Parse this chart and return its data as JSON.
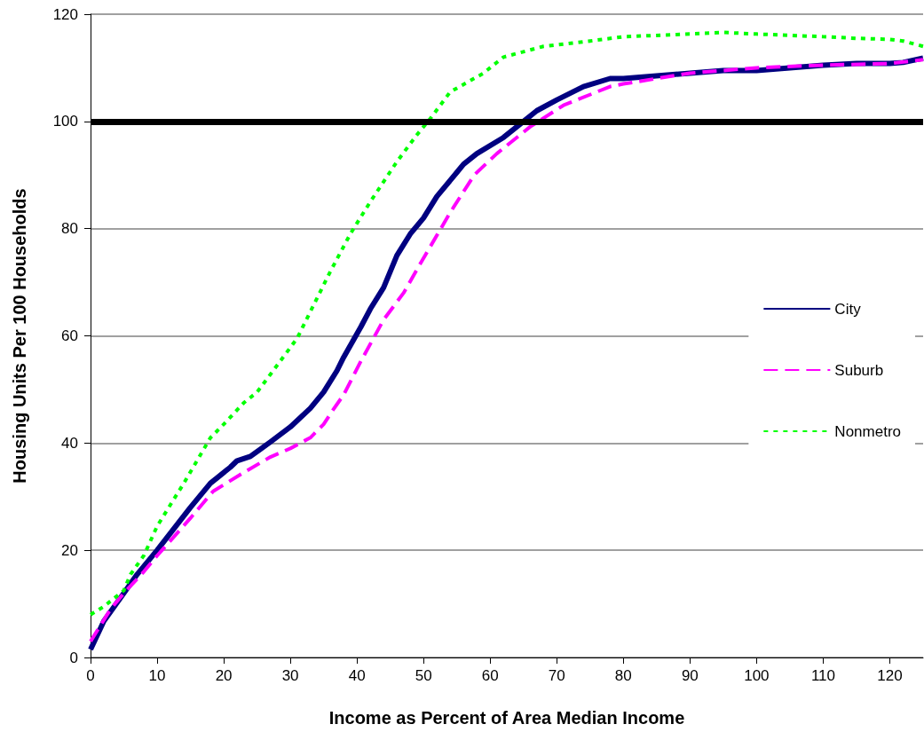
{
  "chart_data": {
    "type": "line",
    "xlabel": "Income as Percent of Area Median Income",
    "ylabel": "Housing Units Per 100 Households",
    "xlim": [
      0,
      125
    ],
    "xticks": [
      0,
      10,
      20,
      30,
      40,
      50,
      60,
      70,
      80,
      90,
      100,
      110,
      120
    ],
    "ylim": [
      0,
      120
    ],
    "yticks": [
      0,
      20,
      40,
      60,
      80,
      100,
      120
    ],
    "grid": "y",
    "legend": "right",
    "marker": "none",
    "ref_lines": [
      {
        "axis": "y",
        "value": 100,
        "color": "#000000"
      }
    ],
    "series": [
      {
        "name": "City",
        "color": "#000080",
        "line_style": "solid",
        "x": [
          0,
          2,
          5,
          7,
          10,
          15,
          18,
          19,
          21,
          22,
          24,
          27,
          30,
          33,
          35,
          37,
          38,
          40.6,
          42,
          44,
          46,
          48,
          50,
          52,
          55,
          56,
          58,
          62,
          65,
          67,
          70,
          74,
          78,
          80,
          90,
          95,
          100,
          105,
          110,
          115,
          120,
          122,
          125
        ],
        "values": [
          1.5,
          6.8,
          12,
          15.5,
          20,
          28,
          32.5,
          33.5,
          35.5,
          36.7,
          37.5,
          40.2,
          43,
          46.5,
          49.5,
          53.5,
          56,
          61.7,
          65,
          69,
          75,
          79,
          82,
          86,
          90.5,
          92,
          94,
          97,
          100,
          102,
          104,
          106.5,
          108,
          108,
          109,
          109.5,
          109.5,
          110,
          110.5,
          110.8,
          110.8,
          111,
          111.8
        ]
      },
      {
        "name": "Suburb",
        "color": "#ff00ff",
        "line_style": "dashed",
        "x": [
          0,
          3,
          5,
          8,
          10,
          15,
          18.4,
          23,
          27,
          30,
          33,
          35,
          36.3,
          38,
          40.6,
          44,
          47,
          49.3,
          54,
          57.6,
          61,
          66,
          71,
          78,
          80,
          90,
          100,
          110,
          120,
          125
        ],
        "values": [
          3,
          9,
          12,
          16,
          19,
          26,
          31,
          34.5,
          37.4,
          39,
          41,
          43.5,
          46,
          49,
          55.3,
          63,
          68,
          73,
          83,
          90,
          94,
          99,
          103,
          106.5,
          107,
          109,
          110,
          110.5,
          110.8,
          111.5
        ]
      },
      {
        "name": "Nonmetro",
        "color": "#00ff00",
        "line_style": "dotted",
        "x": [
          0,
          2,
          5,
          6,
          8,
          10,
          14,
          18,
          20,
          23,
          25,
          27,
          31,
          32,
          36,
          39,
          42,
          46,
          49,
          51,
          54,
          59,
          62,
          68,
          75,
          80,
          90,
          95,
          100,
          110,
          115,
          120,
          122,
          125
        ],
        "values": [
          8,
          9.5,
          12.5,
          15.5,
          19,
          24.5,
          32.5,
          41,
          43.5,
          47.5,
          49.5,
          52.8,
          59.5,
          62,
          72,
          79,
          85,
          92.5,
          97.5,
          100.5,
          105.5,
          109,
          112,
          114,
          115,
          115.8,
          116.3,
          116.6,
          116.3,
          115.8,
          115.5,
          115.3,
          115,
          114
        ]
      }
    ]
  }
}
